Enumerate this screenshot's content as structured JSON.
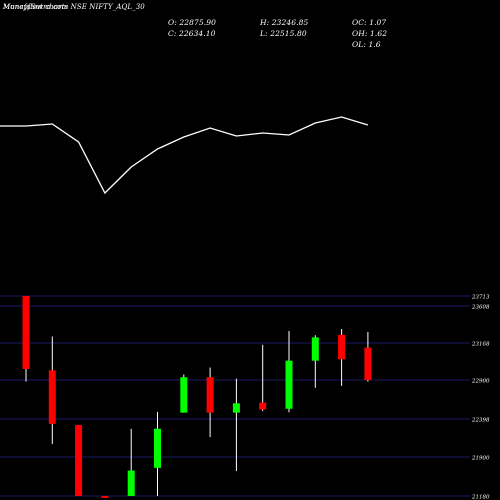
{
  "header": {
    "title": "MunafaSutra.com NSE NIFTY_AQL_30",
    "overlay_text": "Moneyflow charts",
    "open": "O: 22875.90",
    "close": "C: 22634.10",
    "high": "H: 23246.85",
    "low": "L: 22515.80",
    "oc": "OC: 1.07",
    "oh": "OH: 1.62",
    "ol": "OL: 1.6"
  },
  "colors": {
    "background": "#000000",
    "up": "#00ff00",
    "down": "#ff0000",
    "wick": "#ffffff",
    "grid": "#1a1a66",
    "line": "#ffffff",
    "text": "#ffffff"
  },
  "chart_data": [
    {
      "type": "line",
      "name": "moneyflow",
      "x": [
        1,
        2,
        3,
        4,
        5,
        6,
        7,
        8,
        9,
        10,
        11,
        12,
        13,
        14
      ],
      "y": [
        126,
        124,
        142,
        193,
        167,
        149,
        137,
        128,
        136,
        133,
        135,
        123,
        117,
        125
      ]
    },
    {
      "type": "candlestick",
      "x": [
        1,
        2,
        3,
        4,
        5,
        6,
        7,
        8,
        9,
        10,
        11,
        12,
        13,
        14
      ],
      "candles": [
        {
          "o": 23713,
          "h": 23713,
          "l": 22880,
          "c": 22980,
          "dir": "down"
        },
        {
          "o": 22970,
          "h": 23245,
          "l": 22070,
          "c": 22335,
          "dir": "down"
        },
        {
          "o": 22320,
          "h": 22320,
          "l": 21180,
          "c": 21180,
          "dir": "down"
        },
        {
          "o": 21180,
          "h": 21180,
          "l": 21180,
          "c": 21180,
          "dir": "down"
        },
        {
          "o": 21180,
          "h": 22270,
          "l": 21180,
          "c": 21650,
          "dir": "up"
        },
        {
          "o": 21700,
          "h": 22490,
          "l": 21180,
          "c": 22270,
          "dir": "up"
        },
        {
          "o": 22480,
          "h": 22940,
          "l": 22480,
          "c": 22920,
          "dir": "up"
        },
        {
          "o": 22920,
          "h": 22990,
          "l": 22160,
          "c": 22480,
          "dir": "down"
        },
        {
          "o": 22480,
          "h": 22910,
          "l": 21640,
          "c": 22600,
          "dir": "up"
        },
        {
          "o": 22610,
          "h": 23155,
          "l": 22500,
          "c": 22520,
          "dir": "down"
        },
        {
          "o": 22530,
          "h": 23310,
          "l": 22485,
          "c": 23040,
          "dir": "up"
        },
        {
          "o": 23040,
          "h": 23260,
          "l": 22800,
          "c": 23235,
          "dir": "up"
        },
        {
          "o": 23265,
          "h": 23335,
          "l": 22825,
          "c": 23050,
          "dir": "down"
        },
        {
          "o": 23135,
          "h": 23300,
          "l": 22880,
          "c": 22900,
          "dir": "down"
        }
      ],
      "y_ticks": [
        23713,
        23608,
        23168,
        22900,
        22398,
        21900,
        21180
      ],
      "y_tick_labels": [
        "23713",
        "23608",
        "23168",
        "22900",
        "22398",
        "21900",
        "21180"
      ],
      "grid": true
    }
  ]
}
